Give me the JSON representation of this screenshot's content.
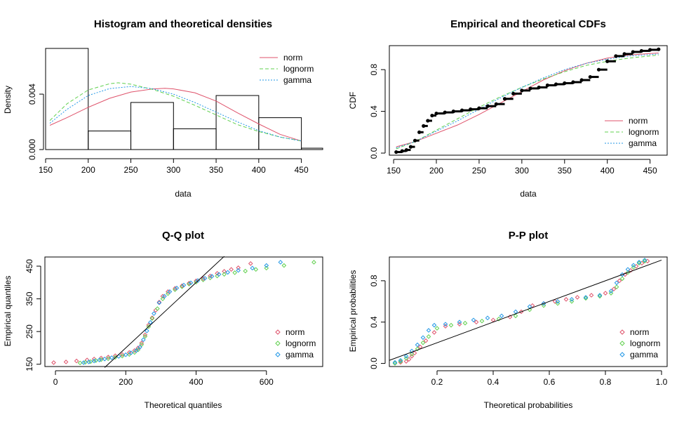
{
  "colors": {
    "norm": "#DF536B",
    "lognorm": "#61D04F",
    "gamma": "#2297E6",
    "frame": "#000000"
  },
  "chart_data": [
    {
      "id": "hist",
      "type": "bar",
      "title": "Histogram and theoretical densities",
      "xlabel": "data",
      "ylabel": "Density",
      "xlim": [
        150,
        475
      ],
      "ylim": [
        0,
        0.0075
      ],
      "xticks": [
        150,
        200,
        250,
        300,
        350,
        400,
        450
      ],
      "yticks": [
        0,
        0.004
      ],
      "ytick_labels": [
        "0.000",
        "0.004"
      ],
      "bins": [
        {
          "from": 150,
          "to": 200,
          "density": 0.0073
        },
        {
          "from": 200,
          "to": 250,
          "density": 0.00134
        },
        {
          "from": 250,
          "to": 300,
          "density": 0.0034
        },
        {
          "from": 300,
          "to": 350,
          "density": 0.0015
        },
        {
          "from": 350,
          "to": 400,
          "density": 0.0039
        },
        {
          "from": 400,
          "to": 450,
          "density": 0.0023
        },
        {
          "from": 450,
          "to": 475,
          "density": 0.0001
        }
      ],
      "series": [
        {
          "name": "norm",
          "x": [
            155,
            175,
            200,
            225,
            250,
            275,
            290,
            300,
            325,
            350,
            375,
            400,
            425,
            450
          ],
          "y": [
            0.00175,
            0.0023,
            0.00305,
            0.0037,
            0.00415,
            0.00437,
            0.00442,
            0.00438,
            0.0041,
            0.0035,
            0.00265,
            0.00185,
            0.0011,
            0.00062
          ]
        },
        {
          "name": "lognorm",
          "x": [
            155,
            175,
            200,
            225,
            235,
            250,
            275,
            300,
            325,
            350,
            375,
            400,
            425,
            450
          ],
          "y": [
            0.0021,
            0.0033,
            0.0043,
            0.00475,
            0.00482,
            0.00472,
            0.00435,
            0.00385,
            0.0032,
            0.0025,
            0.0018,
            0.0013,
            0.0009,
            0.00062
          ]
        },
        {
          "name": "gamma",
          "x": [
            155,
            175,
            200,
            225,
            250,
            275,
            300,
            325,
            350,
            375,
            400,
            425,
            450
          ],
          "y": [
            0.0019,
            0.0029,
            0.0039,
            0.0044,
            0.00455,
            0.0044,
            0.004,
            0.0034,
            0.0027,
            0.002,
            0.00137,
            0.0009,
            0.00062
          ]
        }
      ],
      "legend": {
        "position": "top-right",
        "entries": [
          "norm",
          "lognorm",
          "gamma"
        ]
      }
    },
    {
      "id": "cdf",
      "type": "line",
      "title": "Empirical and theoretical CDFs",
      "xlabel": "data",
      "ylabel": "CDF",
      "xlim": [
        145,
        470
      ],
      "ylim": [
        -0.02,
        1.03
      ],
      "xticks": [
        150,
        200,
        250,
        300,
        350,
        400,
        450
      ],
      "yticks": [
        0,
        0.4,
        0.8
      ],
      "ytick_labels": [
        "0.0",
        "0.4",
        "0.8"
      ],
      "empirical": {
        "x": [
          153,
          160,
          165,
          170,
          175,
          180,
          185,
          190,
          195,
          200,
          210,
          220,
          230,
          240,
          250,
          260,
          270,
          280,
          290,
          300,
          310,
          320,
          330,
          340,
          350,
          360,
          370,
          380,
          390,
          400,
          410,
          420,
          430,
          440,
          450,
          460
        ],
        "y": [
          0.01,
          0.02,
          0.03,
          0.06,
          0.12,
          0.2,
          0.26,
          0.31,
          0.36,
          0.38,
          0.39,
          0.4,
          0.41,
          0.42,
          0.43,
          0.45,
          0.47,
          0.52,
          0.57,
          0.6,
          0.62,
          0.63,
          0.65,
          0.66,
          0.67,
          0.68,
          0.7,
          0.73,
          0.8,
          0.88,
          0.93,
          0.95,
          0.97,
          0.98,
          0.99,
          0.995
        ]
      },
      "series": [
        {
          "name": "norm",
          "x": [
            153,
            175,
            200,
            225,
            250,
            275,
            300,
            325,
            350,
            375,
            400,
            425,
            460
          ],
          "y": [
            0.06,
            0.11,
            0.19,
            0.27,
            0.37,
            0.48,
            0.59,
            0.7,
            0.79,
            0.86,
            0.91,
            0.94,
            0.96
          ]
        },
        {
          "name": "lognorm",
          "x": [
            153,
            175,
            200,
            225,
            250,
            275,
            300,
            325,
            350,
            375,
            400,
            425,
            460
          ],
          "y": [
            0.04,
            0.11,
            0.22,
            0.33,
            0.44,
            0.54,
            0.63,
            0.71,
            0.78,
            0.84,
            0.88,
            0.91,
            0.94
          ]
        },
        {
          "name": "gamma",
          "x": [
            153,
            175,
            200,
            225,
            250,
            275,
            300,
            325,
            350,
            375,
            400,
            425,
            460
          ],
          "y": [
            0.05,
            0.11,
            0.21,
            0.31,
            0.42,
            0.53,
            0.63,
            0.72,
            0.8,
            0.86,
            0.9,
            0.93,
            0.95
          ]
        }
      ],
      "legend": {
        "position": "bottom-right",
        "entries": [
          "norm",
          "lognorm",
          "gamma"
        ]
      }
    },
    {
      "id": "qq",
      "type": "scatter",
      "title": "Q-Q plot",
      "xlabel": "Theoretical quantiles",
      "ylabel": "Empirical quantiles",
      "xlim": [
        -30,
        760
      ],
      "ylim": [
        143,
        478
      ],
      "xticks": [
        0,
        200,
        400,
        600
      ],
      "yticks": [
        150,
        250,
        350,
        450
      ],
      "reference_line": {
        "from": [
          140,
          140
        ],
        "to": [
          480,
          480
        ]
      },
      "series": [
        {
          "name": "norm",
          "x": [
            -5,
            30,
            60,
            90,
            110,
            130,
            150,
            170,
            190,
            210,
            225,
            235,
            245,
            255,
            265,
            275,
            285,
            295,
            305,
            320,
            340,
            360,
            380,
            400,
            420,
            440,
            460,
            480,
            500,
            520,
            555
          ],
          "y": [
            155,
            157,
            160,
            163,
            166,
            169,
            172,
            176,
            180,
            186,
            192,
            200,
            215,
            240,
            270,
            292,
            315,
            340,
            358,
            372,
            382,
            390,
            398,
            405,
            412,
            420,
            428,
            434,
            440,
            445,
            458
          ]
        },
        {
          "name": "lognorm",
          "x": [
            70,
            85,
            100,
            115,
            130,
            150,
            170,
            190,
            210,
            225,
            235,
            245,
            255,
            265,
            275,
            290,
            305,
            320,
            340,
            360,
            380,
            400,
            420,
            440,
            460,
            480,
            510,
            540,
            570,
            600,
            650,
            735
          ],
          "y": [
            154,
            156,
            158,
            161,
            164,
            167,
            171,
            175,
            180,
            186,
            194,
            210,
            235,
            265,
            290,
            320,
            350,
            366,
            378,
            387,
            395,
            401,
            408,
            414,
            420,
            425,
            430,
            435,
            440,
            444,
            452,
            462
          ]
        },
        {
          "name": "gamma",
          "x": [
            80,
            95,
            110,
            125,
            140,
            160,
            180,
            200,
            215,
            230,
            240,
            250,
            260,
            270,
            280,
            295,
            310,
            325,
            345,
            365,
            385,
            405,
            425,
            445,
            465,
            490,
            520,
            560,
            600,
            640
          ],
          "y": [
            155,
            157,
            160,
            163,
            166,
            170,
            174,
            179,
            185,
            192,
            202,
            225,
            252,
            278,
            305,
            338,
            358,
            372,
            383,
            392,
            399,
            406,
            413,
            419,
            425,
            431,
            437,
            444,
            452,
            462
          ]
        }
      ],
      "legend": {
        "position": "bottom-right",
        "entries": [
          "norm",
          "lognorm",
          "gamma"
        ]
      }
    },
    {
      "id": "pp",
      "type": "scatter",
      "title": "P-P plot",
      "xlabel": "Theoretical probabilities",
      "ylabel": "Empirical probabilities",
      "xlim": [
        0.03,
        1.02
      ],
      "ylim": [
        -0.03,
        1.03
      ],
      "xticks": [
        0.2,
        0.4,
        0.6,
        0.8,
        1.0
      ],
      "xtick_labels": [
        "0.2",
        "0.4",
        "0.6",
        "0.8",
        "1.0"
      ],
      "yticks": [
        0,
        0.4,
        0.8
      ],
      "ytick_labels": [
        "0.0",
        "0.4",
        "0.8"
      ],
      "reference_line": {
        "from": [
          0,
          0
        ],
        "to": [
          1,
          1
        ]
      },
      "series": [
        {
          "name": "norm",
          "x": [
            0.07,
            0.09,
            0.1,
            0.11,
            0.12,
            0.14,
            0.16,
            0.19,
            0.23,
            0.28,
            0.34,
            0.4,
            0.46,
            0.5,
            0.54,
            0.58,
            0.62,
            0.66,
            0.7,
            0.75,
            0.8,
            0.83,
            0.85,
            0.87,
            0.89,
            0.91,
            0.93,
            0.95
          ],
          "y": [
            0.01,
            0.02,
            0.04,
            0.07,
            0.1,
            0.16,
            0.22,
            0.3,
            0.36,
            0.38,
            0.4,
            0.42,
            0.45,
            0.5,
            0.56,
            0.58,
            0.6,
            0.62,
            0.64,
            0.66,
            0.68,
            0.72,
            0.8,
            0.86,
            0.9,
            0.94,
            0.97,
            0.99
          ]
        },
        {
          "name": "lognorm",
          "x": [
            0.05,
            0.07,
            0.09,
            0.11,
            0.13,
            0.15,
            0.17,
            0.2,
            0.25,
            0.3,
            0.36,
            0.42,
            0.48,
            0.53,
            0.58,
            0.63,
            0.68,
            0.73,
            0.78,
            0.82,
            0.84,
            0.86,
            0.88,
            0.9,
            0.92,
            0.94
          ],
          "y": [
            0.0,
            0.02,
            0.05,
            0.09,
            0.14,
            0.2,
            0.26,
            0.34,
            0.37,
            0.39,
            0.41,
            0.43,
            0.46,
            0.52,
            0.56,
            0.58,
            0.6,
            0.63,
            0.65,
            0.68,
            0.74,
            0.82,
            0.88,
            0.93,
            0.97,
            0.99
          ]
        },
        {
          "name": "gamma",
          "x": [
            0.05,
            0.07,
            0.09,
            0.11,
            0.13,
            0.15,
            0.17,
            0.19,
            0.23,
            0.28,
            0.33,
            0.38,
            0.43,
            0.48,
            0.53,
            0.58,
            0.63,
            0.68,
            0.73,
            0.78,
            0.82,
            0.84,
            0.86,
            0.88,
            0.9,
            0.92,
            0.94
          ],
          "y": [
            0.01,
            0.03,
            0.07,
            0.12,
            0.18,
            0.25,
            0.32,
            0.37,
            0.38,
            0.4,
            0.42,
            0.44,
            0.46,
            0.5,
            0.55,
            0.58,
            0.6,
            0.62,
            0.64,
            0.66,
            0.7,
            0.78,
            0.86,
            0.91,
            0.95,
            0.98,
            1.0
          ]
        }
      ],
      "legend": {
        "position": "bottom-right",
        "entries": [
          "norm",
          "lognorm",
          "gamma"
        ]
      }
    }
  ]
}
